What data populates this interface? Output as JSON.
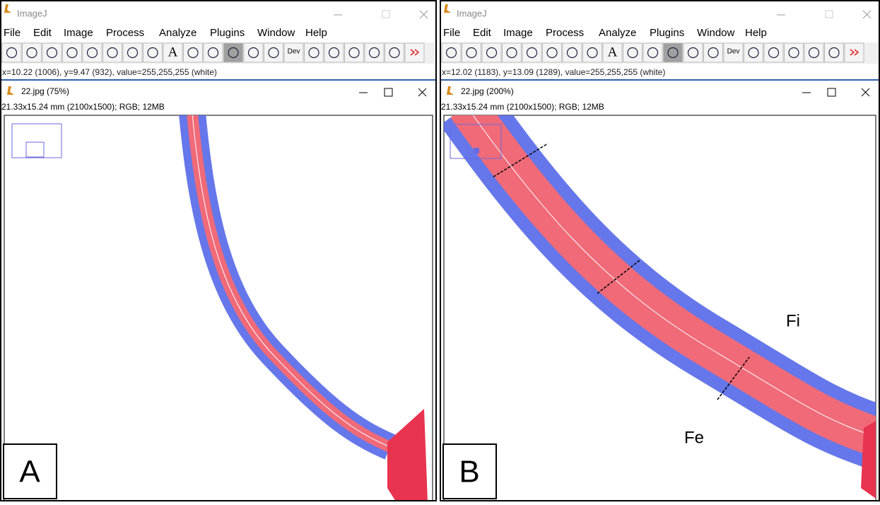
{
  "panels": [
    {
      "app_title": "ImageJ",
      "menu": [
        "File",
        "Edit",
        "Image",
        "Process",
        "Analyze",
        "Plugins",
        "Window",
        "Help"
      ],
      "toolbar": {
        "text_tool": "A",
        "dev": "Dev"
      },
      "status": "x=10.22 (1006), y=9.47 (932), value=255,255,255 (white)",
      "image_title": "22.jpg (75%)",
      "image_info": "21.33x15.24 mm (2100x1500); RGB; 12MB",
      "label": "A",
      "annotations": []
    },
    {
      "app_title": "ImageJ",
      "menu": [
        "File",
        "Edit",
        "Image",
        "Process",
        "Analyze",
        "Plugins",
        "Window",
        "Help"
      ],
      "toolbar": {
        "text_tool": "A",
        "dev": "Dev"
      },
      "status": "x=12.02 (1183), y=13.09 (1289), value=255,255,255 (white)",
      "image_title": "22.jpg (200%)",
      "image_info": "21.33x15.24 mm (2100x1500); RGB; 12MB",
      "label": "B",
      "annotations": [
        "Fi",
        "Fe"
      ]
    }
  ]
}
